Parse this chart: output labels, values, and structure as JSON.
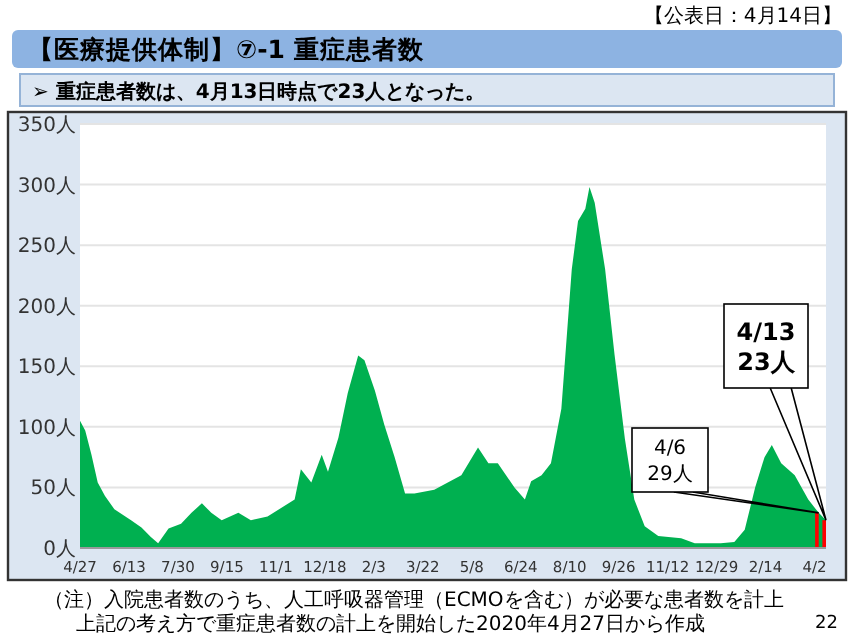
{
  "chart_data": {
    "type": "area",
    "title": "【医療提供体制】⑦-1 重症患者数",
    "subtitle": "➢ 重症患者数は、4月13日時点で23人となった。",
    "annotations": [
      "【公表日：4月14日】",
      "（注）入院患者数のうち、人工呼吸器管理（ECMOを含む）が必要な患者数を計上",
      "上記の考え方で重症患者数の計上を開始した2020年4月27日から作成",
      "22",
      {
        "text": "4/6\n29人",
        "x": "2022-04-06",
        "y": 29
      },
      {
        "text": "4/13\n23人",
        "x": "2022-04-13",
        "y": 23
      }
    ],
    "xlim": [
      "2020-04-27",
      "2022-04-13"
    ],
    "xticks": [
      {
        "value": "2020-04-27",
        "label": "4/27"
      },
      {
        "value": "2020-06-13",
        "label": "6/13"
      },
      {
        "value": "2020-07-30",
        "label": "7/30"
      },
      {
        "value": "2020-09-15",
        "label": "9/15"
      },
      {
        "value": "2020-11-01",
        "label": "11/1"
      },
      {
        "value": "2020-12-18",
        "label": "12/18"
      },
      {
        "value": "2021-02-03",
        "label": "2/3"
      },
      {
        "value": "2021-03-22",
        "label": "3/22"
      },
      {
        "value": "2021-05-08",
        "label": "5/8"
      },
      {
        "value": "2021-06-24",
        "label": "6/24"
      },
      {
        "value": "2021-08-10",
        "label": "8/10"
      },
      {
        "value": "2021-09-26",
        "label": "9/26"
      },
      {
        "value": "2021-11-12",
        "label": "11/12"
      },
      {
        "value": "2021-12-29",
        "label": "12/29"
      },
      {
        "value": "2022-02-14",
        "label": "2/14"
      },
      {
        "value": "2022-04-02",
        "label": "4/2"
      }
    ],
    "ylim": [
      0,
      350
    ],
    "yticks": [
      {
        "value": 0,
        "label": "0人"
      },
      {
        "value": 50,
        "label": "50人"
      },
      {
        "value": 100,
        "label": "100人"
      },
      {
        "value": 150,
        "label": "150人"
      },
      {
        "value": 200,
        "label": "200人"
      },
      {
        "value": 250,
        "label": "250人"
      },
      {
        "value": 300,
        "label": "300人"
      },
      {
        "value": 350,
        "label": "350人"
      }
    ],
    "grid": "y",
    "series": [
      {
        "color": "#00b050",
        "x": [
          "2020-04-27",
          "2020-05-02",
          "2020-05-08",
          "2020-05-14",
          "2020-05-21",
          "2020-05-30",
          "2020-06-15",
          "2020-06-25",
          "2020-07-04",
          "2020-07-11",
          "2020-07-21",
          "2020-08-02",
          "2020-08-12",
          "2020-08-22",
          "2020-08-31",
          "2020-09-10",
          "2020-09-26",
          "2020-10-08",
          "2020-10-24",
          "2020-11-06",
          "2020-11-19",
          "2020-11-25",
          "2020-12-05",
          "2020-12-15",
          "2020-12-21",
          "2020-12-31",
          "2021-01-09",
          "2021-01-19",
          "2021-01-25",
          "2021-02-04",
          "2021-02-13",
          "2021-02-23",
          "2021-03-05",
          "2021-03-14",
          "2021-04-02",
          "2021-04-28",
          "2021-05-14",
          "2021-05-24",
          "2021-06-02",
          "2021-06-18",
          "2021-06-28",
          "2021-07-04",
          "2021-07-14",
          "2021-07-23",
          "2021-08-02",
          "2021-08-12",
          "2021-08-18",
          "2021-08-25",
          "2021-08-29",
          "2021-09-03",
          "2021-09-13",
          "2021-09-22",
          "2021-10-02",
          "2021-10-11",
          "2021-10-21",
          "2021-11-03",
          "2021-11-25",
          "2021-12-08",
          "2022-01-02",
          "2022-01-15",
          "2022-01-25",
          "2022-02-04",
          "2022-02-13",
          "2022-02-20",
          "2022-03-01",
          "2022-03-14",
          "2022-03-27",
          "2022-04-06",
          "2022-04-13"
        ],
        "values": [
          105,
          97,
          77,
          54,
          43,
          32,
          23,
          17,
          9,
          4,
          16,
          20,
          29,
          37,
          29,
          23,
          29,
          23,
          26,
          33,
          40,
          65,
          54,
          77,
          63,
          91,
          128,
          159,
          155,
          130,
          102,
          75,
          45,
          45,
          48,
          60,
          83,
          70,
          70,
          50,
          40,
          55,
          60,
          70,
          115,
          230,
          270,
          280,
          298,
          285,
          230,
          160,
          90,
          40,
          18,
          10,
          8,
          4,
          4,
          5,
          15,
          50,
          75,
          85,
          70,
          60,
          40,
          29,
          23
        ]
      },
      {
        "type": "bar",
        "color": "#ff0000",
        "x": [
          "2022-04-06",
          "2022-04-13"
        ],
        "values": [
          29,
          23
        ]
      }
    ]
  }
}
